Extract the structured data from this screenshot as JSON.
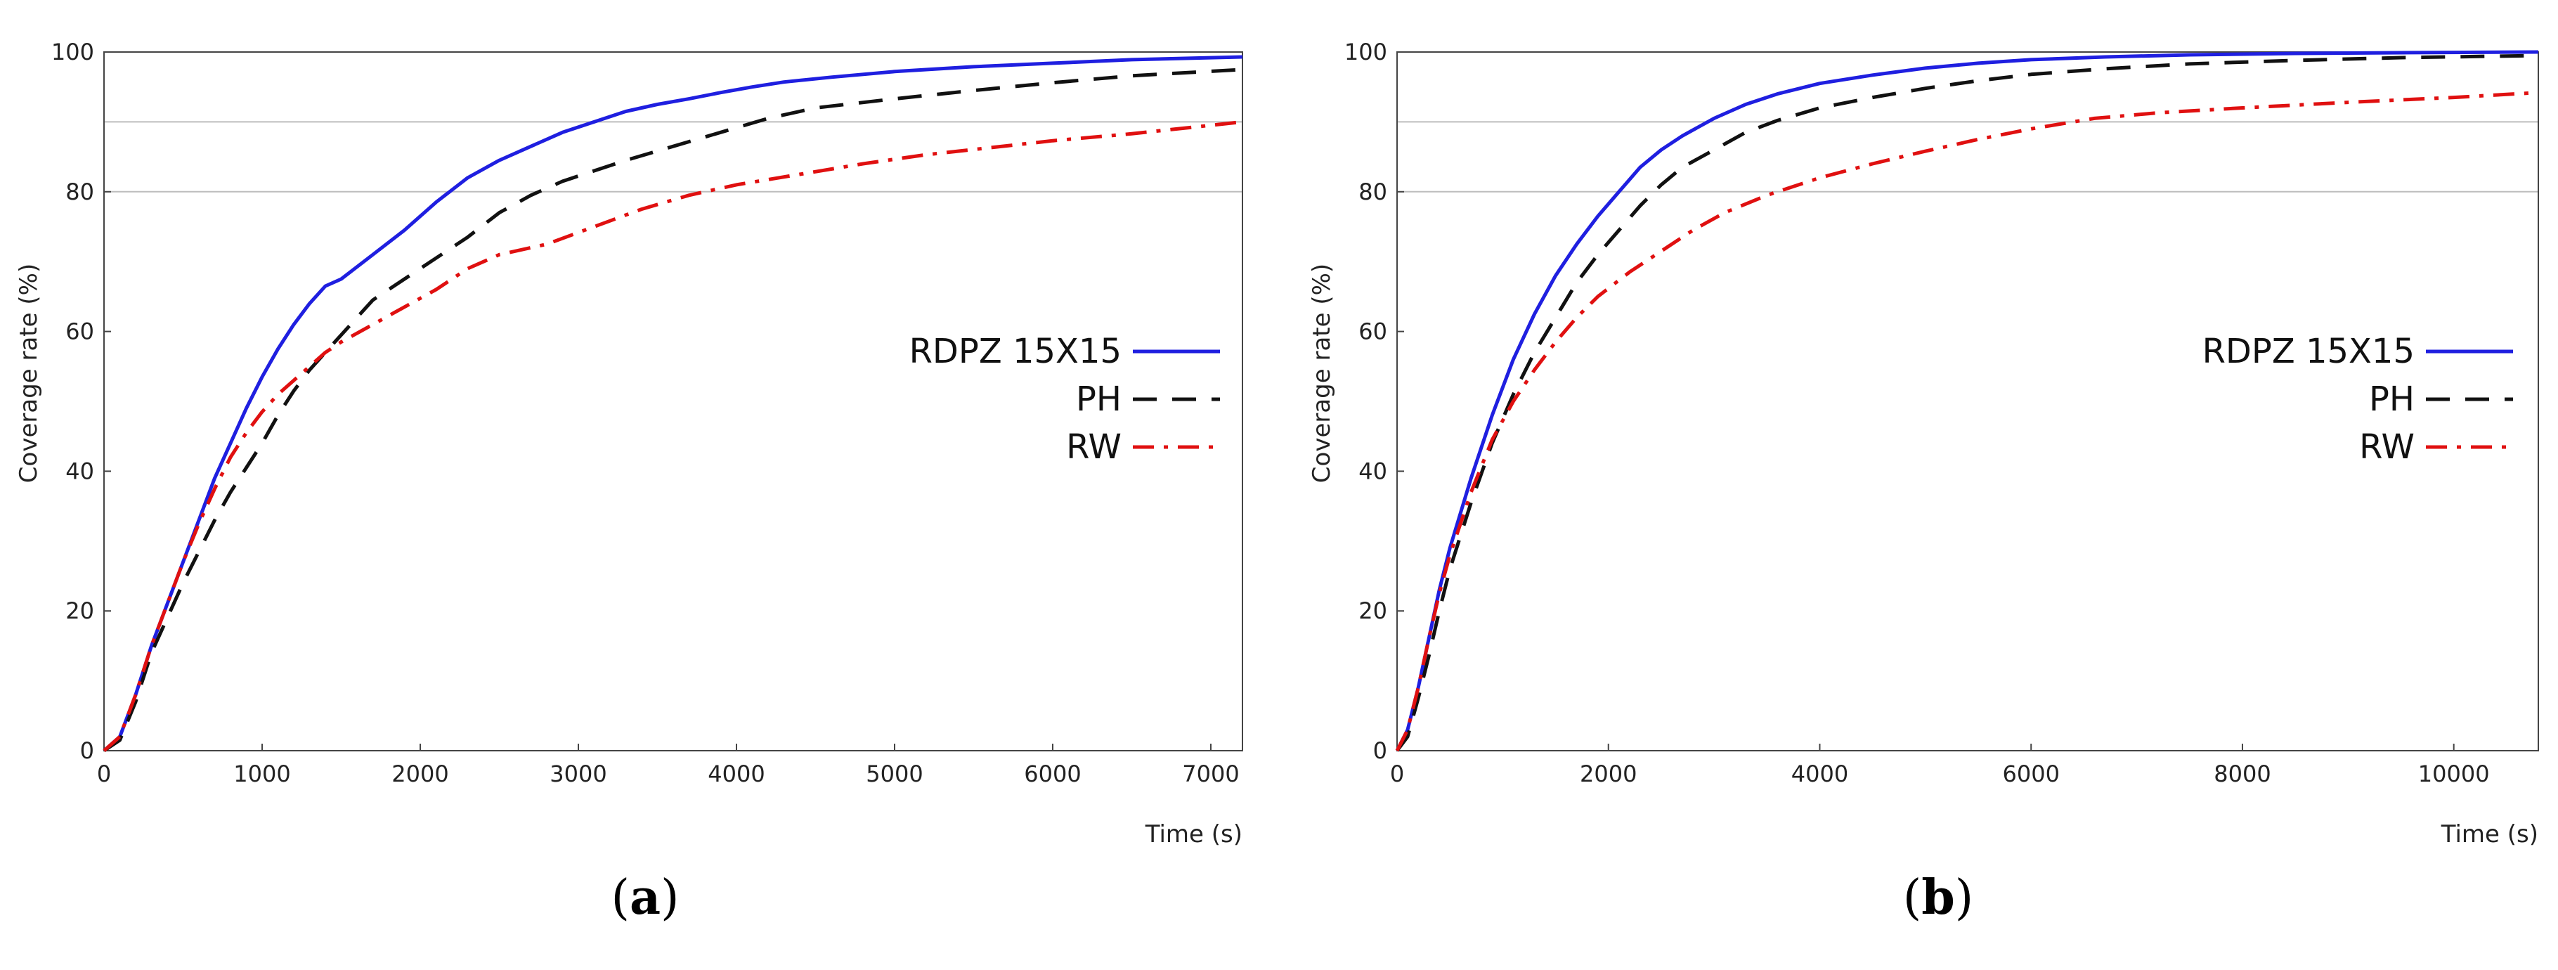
{
  "chart_data": [
    {
      "type": "line",
      "panel_label": "(a)",
      "xlabel": "Time (s)",
      "ylabel": "Coverage rate (%)",
      "xlim": [
        0,
        7200
      ],
      "ylim": [
        0,
        100
      ],
      "xticks": [
        0,
        1000,
        2000,
        3000,
        4000,
        5000,
        6000,
        7000
      ],
      "yticks": [
        0,
        20,
        40,
        60,
        80,
        100
      ],
      "grid_y": [
        80,
        90,
        100
      ],
      "legend_position": "right",
      "series": [
        {
          "name": "RDPZ 15X15",
          "color": "#1f1fe0",
          "dash": "solid",
          "x": [
            0,
            100,
            200,
            300,
            400,
            500,
            600,
            700,
            800,
            900,
            1000,
            1100,
            1200,
            1300,
            1400,
            1500,
            1700,
            1900,
            2100,
            2300,
            2500,
            2700,
            2900,
            3100,
            3300,
            3500,
            3700,
            3900,
            4100,
            4300,
            4600,
            5000,
            5500,
            6000,
            6500,
            7200
          ],
          "y": [
            0,
            2,
            8,
            15,
            21,
            27,
            33,
            39,
            44,
            49,
            53.5,
            57.5,
            61,
            64,
            66.5,
            67.5,
            71,
            74.5,
            78.5,
            82,
            84.5,
            86.5,
            88.5,
            90,
            91.5,
            92.5,
            93.3,
            94.2,
            95,
            95.7,
            96.4,
            97.2,
            97.9,
            98.4,
            98.9,
            99.3
          ]
        },
        {
          "name": "PH",
          "color": "#111111",
          "dash": "dashed",
          "x": [
            0,
            100,
            200,
            300,
            400,
            500,
            600,
            700,
            800,
            900,
            1000,
            1100,
            1200,
            1300,
            1400,
            1500,
            1600,
            1700,
            1900,
            2100,
            2300,
            2500,
            2700,
            2900,
            3100,
            3300,
            3600,
            3900,
            4200,
            4500,
            5000,
            5500,
            6000,
            6500,
            7200
          ],
          "y": [
            0,
            1.5,
            7,
            14,
            19,
            24,
            28.5,
            33,
            37,
            40.5,
            44,
            48,
            51.5,
            54.5,
            57,
            59.5,
            62,
            64.5,
            67.5,
            70.5,
            73.5,
            77,
            79.5,
            81.5,
            83,
            84.5,
            86.5,
            88.5,
            90.5,
            92,
            93.3,
            94.5,
            95.6,
            96.6,
            97.5
          ]
        },
        {
          "name": "RW",
          "color": "#e01010",
          "dash": "dashdot",
          "x": [
            0,
            100,
            200,
            300,
            400,
            500,
            600,
            700,
            800,
            900,
            1000,
            1100,
            1200,
            1300,
            1400,
            1500,
            1700,
            1900,
            2100,
            2300,
            2500,
            2800,
            3100,
            3400,
            3700,
            4000,
            4400,
            4800,
            5200,
            5600,
            6000,
            6500,
            7200
          ],
          "y": [
            0,
            2,
            8,
            15,
            21,
            27,
            32.5,
            37.5,
            42,
            45.5,
            48.5,
            51,
            53,
            55,
            57,
            58.5,
            61,
            63.5,
            66,
            69,
            71,
            72.5,
            75,
            77.5,
            79.5,
            81,
            82.5,
            84,
            85.3,
            86.3,
            87.3,
            88.3,
            90
          ]
        }
      ]
    },
    {
      "type": "line",
      "panel_label": "(b)",
      "xlabel": "Time (s)",
      "ylabel": "Coverage rate (%)",
      "xlim": [
        0,
        10800
      ],
      "ylim": [
        0,
        100
      ],
      "xticks": [
        0,
        2000,
        4000,
        6000,
        8000,
        10000
      ],
      "yticks": [
        0,
        20,
        40,
        60,
        80,
        100
      ],
      "grid_y": [
        80,
        90,
        100
      ],
      "legend_position": "right",
      "series": [
        {
          "name": "RDPZ 15X15",
          "color": "#1f1fe0",
          "dash": "solid",
          "x": [
            0,
            100,
            200,
            300,
            400,
            500,
            700,
            900,
            1100,
            1300,
            1500,
            1700,
            1900,
            2100,
            2300,
            2500,
            2700,
            3000,
            3300,
            3600,
            4000,
            4500,
            5000,
            5500,
            6000,
            6700,
            7500,
            8500,
            9500,
            10800
          ],
          "y": [
            0,
            3,
            9,
            16,
            23,
            29,
            39,
            48,
            56,
            62.5,
            68,
            72.5,
            76.5,
            80,
            83.5,
            86,
            88,
            90.5,
            92.5,
            94,
            95.5,
            96.7,
            97.7,
            98.4,
            98.9,
            99.3,
            99.6,
            99.8,
            99.9,
            100
          ]
        },
        {
          "name": "PH",
          "color": "#111111",
          "dash": "dashed",
          "x": [
            0,
            100,
            200,
            300,
            400,
            500,
            700,
            900,
            1100,
            1300,
            1500,
            1700,
            1900,
            2100,
            2300,
            2500,
            2700,
            3000,
            3300,
            3600,
            4000,
            4500,
            5000,
            5500,
            6000,
            6700,
            7500,
            8500,
            9500,
            10800
          ],
          "y": [
            0,
            2,
            7.5,
            13.5,
            20,
            26,
            35.5,
            44,
            51,
            57,
            62,
            67,
            71,
            74.5,
            78,
            81,
            83.5,
            86,
            88.5,
            90.2,
            92,
            93.5,
            94.8,
            95.9,
            96.8,
            97.6,
            98.3,
            98.8,
            99.2,
            99.5
          ]
        },
        {
          "name": "RW",
          "color": "#e01010",
          "dash": "dashdot",
          "x": [
            0,
            100,
            200,
            300,
            400,
            500,
            700,
            900,
            1100,
            1300,
            1500,
            1700,
            1900,
            2200,
            2500,
            2800,
            3100,
            3500,
            4000,
            4500,
            5000,
            5500,
            6000,
            6600,
            7200,
            8000,
            9000,
            10000,
            10800
          ],
          "y": [
            0,
            3,
            9,
            16,
            22.5,
            28,
            37,
            44.5,
            50,
            54.5,
            58.5,
            62,
            65,
            68.5,
            71.5,
            74.5,
            77,
            79.5,
            82,
            84,
            85.8,
            87.5,
            89,
            90.5,
            91.3,
            92,
            92.8,
            93.5,
            94.2
          ]
        }
      ]
    }
  ]
}
